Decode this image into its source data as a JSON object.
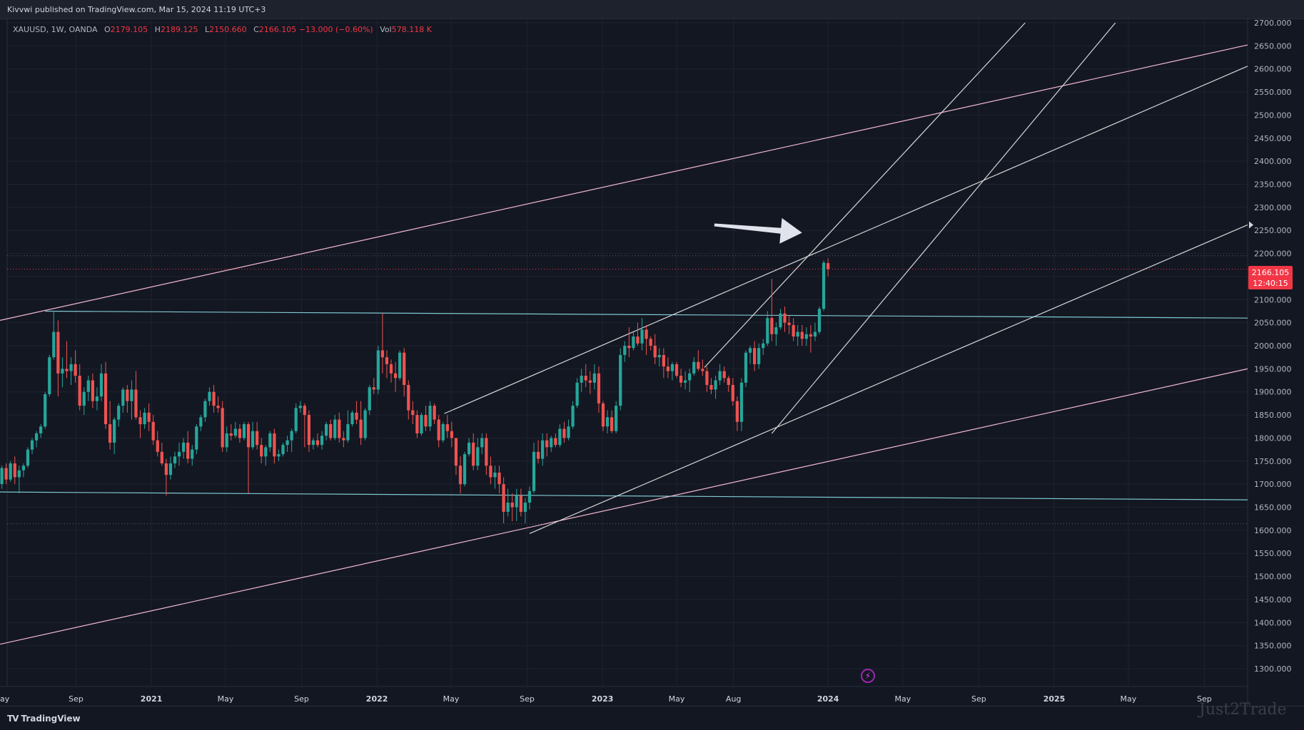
{
  "header": {
    "publish_line": "Kivvwi published on TradingView.com, Mar 15, 2024 11:19 UTC+3"
  },
  "legend": {
    "symbol": "XAUUSD, 1W, OANDA",
    "open_label": "O",
    "open": "2179.105",
    "high_label": "H",
    "high": "2189.125",
    "low_label": "L",
    "low": "2150.660",
    "close_label": "C",
    "close": "2166.105",
    "change": "−13.000 (−0.60%)",
    "vol_label": "Vol",
    "vol": "578.118 K"
  },
  "price_tag": {
    "price": "2166.105",
    "countdown": "12:40:15"
  },
  "footer": {
    "brand": "TradingView",
    "watermark": "Just2Trade"
  },
  "chart_data": {
    "type": "candlestick",
    "symbol": "XAUUSD",
    "interval": "1W",
    "ylim": [
      1300,
      2700
    ],
    "y_ticks": [
      "1300.000",
      "1350.000",
      "1400.000",
      "1450.000",
      "1500.000",
      "1550.000",
      "1600.000",
      "1650.000",
      "1700.000",
      "1750.000",
      "1800.000",
      "1850.000",
      "1900.000",
      "1950.000",
      "2000.000",
      "2050.000",
      "2100.000",
      "2150.000",
      "2200.000",
      "2250.000",
      "2300.000",
      "2350.000",
      "2400.000",
      "2450.000",
      "2500.000",
      "2550.000",
      "2600.000",
      "2650.000",
      "2700.000"
    ],
    "x_start": "2020-05-01",
    "x_end": "2025-11-10",
    "x_ticks": [
      {
        "label": "ay",
        "date": "2020-05-01",
        "bold": false
      },
      {
        "label": "Sep",
        "date": "2020-09-01",
        "bold": false
      },
      {
        "label": "2021",
        "date": "2021-01-01",
        "bold": true
      },
      {
        "label": "May",
        "date": "2021-05-01",
        "bold": false
      },
      {
        "label": "Sep",
        "date": "2021-09-01",
        "bold": false
      },
      {
        "label": "2022",
        "date": "2022-01-01",
        "bold": true
      },
      {
        "label": "May",
        "date": "2022-05-01",
        "bold": false
      },
      {
        "label": "Sep",
        "date": "2022-09-01",
        "bold": false
      },
      {
        "label": "2023",
        "date": "2023-01-01",
        "bold": true
      },
      {
        "label": "May",
        "date": "2023-05-01",
        "bold": false
      },
      {
        "label": "Aug",
        "date": "2023-08-01",
        "bold": false
      },
      {
        "label": "2024",
        "date": "2024-01-01",
        "bold": true
      },
      {
        "label": "May",
        "date": "2024-05-01",
        "bold": false
      },
      {
        "label": "Sep",
        "date": "2024-09-01",
        "bold": false
      },
      {
        "label": "2025",
        "date": "2025-01-01",
        "bold": true
      },
      {
        "label": "May",
        "date": "2025-05-01",
        "bold": false
      },
      {
        "label": "Sep",
        "date": "2025-09-01",
        "bold": false
      }
    ],
    "candles_first_week": "2020-05-04",
    "candles_ohlc": [
      [
        1700,
        1740,
        1690,
        1735
      ],
      [
        1735,
        1745,
        1700,
        1710
      ],
      [
        1710,
        1750,
        1705,
        1745
      ],
      [
        1745,
        1760,
        1700,
        1715
      ],
      [
        1715,
        1740,
        1680,
        1730
      ],
      [
        1730,
        1745,
        1715,
        1740
      ],
      [
        1740,
        1780,
        1735,
        1775
      ],
      [
        1775,
        1800,
        1765,
        1795
      ],
      [
        1795,
        1815,
        1780,
        1810
      ],
      [
        1810,
        1830,
        1800,
        1825
      ],
      [
        1825,
        1900,
        1820,
        1895
      ],
      [
        1895,
        1980,
        1890,
        1975
      ],
      [
        1975,
        2075,
        1970,
        2030
      ],
      [
        2030,
        2055,
        1890,
        1940
      ],
      [
        1940,
        1975,
        1910,
        1950
      ],
      [
        1950,
        2010,
        1930,
        1945
      ],
      [
        1945,
        1975,
        1915,
        1960
      ],
      [
        1960,
        1990,
        1920,
        1935
      ],
      [
        1935,
        1960,
        1860,
        1870
      ],
      [
        1870,
        1910,
        1850,
        1900
      ],
      [
        1900,
        1935,
        1880,
        1925
      ],
      [
        1925,
        1940,
        1865,
        1880
      ],
      [
        1880,
        1910,
        1860,
        1890
      ],
      [
        1890,
        1960,
        1880,
        1940
      ],
      [
        1940,
        1965,
        1820,
        1830
      ],
      [
        1830,
        1880,
        1775,
        1790
      ],
      [
        1790,
        1845,
        1765,
        1840
      ],
      [
        1840,
        1875,
        1825,
        1870
      ],
      [
        1870,
        1910,
        1855,
        1905
      ],
      [
        1905,
        1915,
        1855,
        1880
      ],
      [
        1880,
        1925,
        1840,
        1905
      ],
      [
        1905,
        1945,
        1840,
        1845
      ],
      [
        1845,
        1860,
        1800,
        1830
      ],
      [
        1830,
        1865,
        1820,
        1855
      ],
      [
        1855,
        1875,
        1815,
        1835
      ],
      [
        1835,
        1850,
        1785,
        1795
      ],
      [
        1795,
        1815,
        1760,
        1770
      ],
      [
        1770,
        1790,
        1740,
        1745
      ],
      [
        1745,
        1755,
        1675,
        1720
      ],
      [
        1720,
        1760,
        1710,
        1745
      ],
      [
        1745,
        1770,
        1735,
        1760
      ],
      [
        1760,
        1790,
        1740,
        1770
      ],
      [
        1770,
        1800,
        1755,
        1790
      ],
      [
        1790,
        1815,
        1745,
        1755
      ],
      [
        1755,
        1785,
        1740,
        1775
      ],
      [
        1775,
        1830,
        1765,
        1825
      ],
      [
        1825,
        1850,
        1815,
        1845
      ],
      [
        1845,
        1885,
        1835,
        1880
      ],
      [
        1880,
        1910,
        1870,
        1900
      ],
      [
        1900,
        1915,
        1855,
        1870
      ],
      [
        1870,
        1890,
        1855,
        1865
      ],
      [
        1865,
        1880,
        1770,
        1780
      ],
      [
        1780,
        1825,
        1770,
        1810
      ],
      [
        1810,
        1830,
        1795,
        1805
      ],
      [
        1805,
        1835,
        1800,
        1820
      ],
      [
        1820,
        1830,
        1790,
        1800
      ],
      [
        1800,
        1835,
        1795,
        1830
      ],
      [
        1830,
        1835,
        1680,
        1780
      ],
      [
        1780,
        1835,
        1775,
        1815
      ],
      [
        1815,
        1835,
        1775,
        1785
      ],
      [
        1785,
        1800,
        1745,
        1760
      ],
      [
        1760,
        1785,
        1740,
        1780
      ],
      [
        1780,
        1815,
        1770,
        1810
      ],
      [
        1810,
        1820,
        1745,
        1760
      ],
      [
        1760,
        1775,
        1750,
        1765
      ],
      [
        1765,
        1790,
        1760,
        1785
      ],
      [
        1785,
        1805,
        1770,
        1795
      ],
      [
        1795,
        1820,
        1770,
        1815
      ],
      [
        1815,
        1875,
        1810,
        1865
      ],
      [
        1865,
        1880,
        1855,
        1870
      ],
      [
        1870,
        1875,
        1780,
        1850
      ],
      [
        1850,
        1860,
        1770,
        1785
      ],
      [
        1785,
        1800,
        1775,
        1795
      ],
      [
        1795,
        1810,
        1780,
        1785
      ],
      [
        1785,
        1815,
        1775,
        1805
      ],
      [
        1805,
        1835,
        1795,
        1830
      ],
      [
        1830,
        1840,
        1795,
        1800
      ],
      [
        1800,
        1850,
        1795,
        1840
      ],
      [
        1840,
        1855,
        1790,
        1800
      ],
      [
        1800,
        1815,
        1780,
        1795
      ],
      [
        1795,
        1860,
        1790,
        1830
      ],
      [
        1830,
        1860,
        1825,
        1855
      ],
      [
        1855,
        1880,
        1830,
        1840
      ],
      [
        1840,
        1880,
        1785,
        1800
      ],
      [
        1800,
        1865,
        1795,
        1860
      ],
      [
        1860,
        1915,
        1850,
        1910
      ],
      [
        1910,
        1930,
        1895,
        1905
      ],
      [
        1905,
        2000,
        1895,
        1990
      ],
      [
        1990,
        2070,
        1940,
        1975
      ],
      [
        1975,
        1990,
        1930,
        1960
      ],
      [
        1960,
        1970,
        1920,
        1940
      ],
      [
        1940,
        1965,
        1900,
        1930
      ],
      [
        1930,
        1990,
        1925,
        1985
      ],
      [
        1985,
        1995,
        1890,
        1915
      ],
      [
        1915,
        1925,
        1840,
        1860
      ],
      [
        1860,
        1880,
        1830,
        1850
      ],
      [
        1850,
        1860,
        1800,
        1810
      ],
      [
        1810,
        1855,
        1805,
        1850
      ],
      [
        1850,
        1870,
        1815,
        1825
      ],
      [
        1825,
        1880,
        1815,
        1870
      ],
      [
        1870,
        1875,
        1830,
        1840
      ],
      [
        1840,
        1850,
        1780,
        1795
      ],
      [
        1795,
        1835,
        1790,
        1830
      ],
      [
        1830,
        1850,
        1800,
        1815
      ],
      [
        1815,
        1835,
        1780,
        1800
      ],
      [
        1800,
        1800,
        1720,
        1740
      ],
      [
        1740,
        1760,
        1680,
        1700
      ],
      [
        1700,
        1770,
        1695,
        1765
      ],
      [
        1765,
        1800,
        1760,
        1790
      ],
      [
        1790,
        1810,
        1730,
        1740
      ],
      [
        1740,
        1800,
        1730,
        1780
      ],
      [
        1780,
        1810,
        1765,
        1800
      ],
      [
        1800,
        1810,
        1720,
        1740
      ],
      [
        1740,
        1760,
        1700,
        1715
      ],
      [
        1715,
        1740,
        1690,
        1725
      ],
      [
        1725,
        1740,
        1680,
        1700
      ],
      [
        1700,
        1715,
        1615,
        1640
      ],
      [
        1640,
        1690,
        1630,
        1660
      ],
      [
        1660,
        1680,
        1620,
        1650
      ],
      [
        1650,
        1690,
        1620,
        1675
      ],
      [
        1675,
        1690,
        1630,
        1640
      ],
      [
        1640,
        1670,
        1615,
        1660
      ],
      [
        1660,
        1695,
        1645,
        1685
      ],
      [
        1685,
        1790,
        1680,
        1770
      ],
      [
        1770,
        1795,
        1745,
        1755
      ],
      [
        1755,
        1810,
        1740,
        1795
      ],
      [
        1795,
        1810,
        1760,
        1780
      ],
      [
        1780,
        1805,
        1770,
        1800
      ],
      [
        1800,
        1810,
        1780,
        1785
      ],
      [
        1785,
        1830,
        1780,
        1820
      ],
      [
        1820,
        1835,
        1790,
        1800
      ],
      [
        1800,
        1840,
        1795,
        1825
      ],
      [
        1825,
        1880,
        1820,
        1870
      ],
      [
        1870,
        1930,
        1865,
        1920
      ],
      [
        1920,
        1950,
        1900,
        1935
      ],
      [
        1935,
        1960,
        1910,
        1925
      ],
      [
        1925,
        1945,
        1895,
        1920
      ],
      [
        1920,
        1960,
        1905,
        1940
      ],
      [
        1940,
        1955,
        1855,
        1875
      ],
      [
        1875,
        1880,
        1815,
        1825
      ],
      [
        1825,
        1860,
        1810,
        1845
      ],
      [
        1845,
        1860,
        1810,
        1815
      ],
      [
        1815,
        1880,
        1810,
        1870
      ],
      [
        1870,
        1995,
        1860,
        1980
      ],
      [
        1980,
        2010,
        1965,
        2000
      ],
      [
        2000,
        2040,
        1975,
        1995
      ],
      [
        1995,
        2030,
        1990,
        2020
      ],
      [
        2020,
        2050,
        2000,
        2005
      ],
      [
        2005,
        2060,
        1990,
        2035
      ],
      [
        2035,
        2045,
        1980,
        2015
      ],
      [
        2015,
        2020,
        1990,
        2000
      ],
      [
        2000,
        2025,
        1960,
        1975
      ],
      [
        1975,
        1995,
        1955,
        1980
      ],
      [
        1980,
        1995,
        1930,
        1955
      ],
      [
        1955,
        1975,
        1930,
        1945
      ],
      [
        1945,
        1965,
        1925,
        1960
      ],
      [
        1960,
        1965,
        1930,
        1935
      ],
      [
        1935,
        1950,
        1910,
        1920
      ],
      [
        1920,
        1945,
        1905,
        1925
      ],
      [
        1925,
        1950,
        1900,
        1940
      ],
      [
        1940,
        1975,
        1935,
        1965
      ],
      [
        1965,
        1990,
        1945,
        1950
      ],
      [
        1950,
        1970,
        1935,
        1945
      ],
      [
        1945,
        1955,
        1900,
        1915
      ],
      [
        1915,
        1930,
        1895,
        1905
      ],
      [
        1905,
        1935,
        1885,
        1925
      ],
      [
        1925,
        1960,
        1915,
        1945
      ],
      [
        1945,
        1955,
        1920,
        1930
      ],
      [
        1930,
        1935,
        1900,
        1915
      ],
      [
        1915,
        1930,
        1870,
        1880
      ],
      [
        1880,
        1890,
        1815,
        1835
      ],
      [
        1835,
        1930,
        1815,
        1920
      ],
      [
        1920,
        1990,
        1910,
        1985
      ],
      [
        1985,
        2000,
        1960,
        1995
      ],
      [
        1995,
        2010,
        1945,
        1960
      ],
      [
        1960,
        2005,
        1950,
        1995
      ],
      [
        1995,
        2015,
        1980,
        2005
      ],
      [
        2005,
        2075,
        2000,
        2060
      ],
      [
        2060,
        2145,
        2010,
        2025
      ],
      [
        2025,
        2050,
        2000,
        2040
      ],
      [
        2040,
        2080,
        2035,
        2070
      ],
      [
        2070,
        2085,
        2030,
        2050
      ],
      [
        2050,
        2065,
        2025,
        2045
      ],
      [
        2045,
        2060,
        2010,
        2020
      ],
      [
        2020,
        2045,
        2000,
        2030
      ],
      [
        2030,
        2045,
        2000,
        2015
      ],
      [
        2015,
        2040,
        2000,
        2025
      ],
      [
        2025,
        2045,
        1985,
        2020
      ],
      [
        2020,
        2050,
        2010,
        2030
      ],
      [
        2030,
        2085,
        2025,
        2080
      ],
      [
        2080,
        2185,
        2075,
        2180
      ],
      [
        2179.105,
        2189.125,
        2150.66,
        2166.105
      ]
    ],
    "trend_lines": [
      {
        "name": "resistance-horizontal",
        "color": "#7fc8d1",
        "p1": [
          "2020-07-13",
          2075
        ],
        "p2": [
          "2025-11-10",
          2060
        ]
      },
      {
        "name": "support-horizontal",
        "color": "#7fc8d1",
        "p1": [
          "2020-05-01",
          1683
        ],
        "p2": [
          "2025-11-10",
          1666
        ]
      },
      {
        "name": "upper-channel",
        "color": "#f3b8cf",
        "p1": [
          "2020-05-01",
          2055
        ],
        "p2": [
          "2025-11-10",
          2652
        ]
      },
      {
        "name": "lower-channel",
        "color": "#f3b8cf",
        "p1": [
          "2020-05-01",
          1353
        ],
        "p2": [
          "2025-11-10",
          1950
        ]
      },
      {
        "name": "trend-a",
        "color": "#d6d6d6",
        "p1": [
          "2022-04-20",
          1853
        ],
        "p2": [
          "2025-11-10",
          2606
        ]
      },
      {
        "name": "trend-b",
        "color": "#d6d6d6",
        "p1": [
          "2022-09-05",
          1593
        ],
        "p2": [
          "2025-11-10",
          2262
        ]
      },
      {
        "name": "trend-c",
        "color": "#d6d6d6",
        "p1": [
          "2023-06-15",
          1953
        ],
        "p2": [
          "2024-11-15",
          2700
        ]
      },
      {
        "name": "trend-d",
        "color": "#d6d6d6",
        "p1": [
          "2023-10-02",
          1810
        ],
        "p2": [
          "2025-04-10",
          2700
        ]
      }
    ],
    "dotted_levels": [
      2195,
      2166.105,
      1614
    ],
    "current_price": 2166.105,
    "annotation_arrow": {
      "from": [
        "2023-07-01",
        2262
      ],
      "to": [
        "2023-11-20",
        2245
      ],
      "color": "#e0e3eb"
    },
    "grid": true,
    "price_axis_side": "right"
  }
}
